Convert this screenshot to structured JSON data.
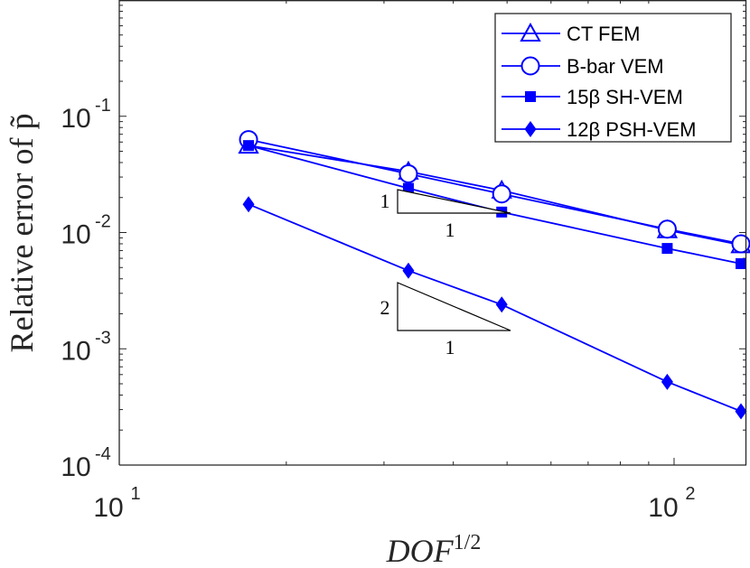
{
  "chart_data": {
    "type": "line",
    "xscale": "log",
    "yscale": "log",
    "xlim": [
      10,
      135
    ],
    "ylim": [
      0.0001,
      1
    ],
    "x_ticks": [
      {
        "value": 10,
        "base": "10",
        "exp": "1"
      },
      {
        "value": 100,
        "base": "10",
        "exp": "2"
      }
    ],
    "y_ticks": [
      {
        "value": 0.1,
        "base": "10",
        "exp": "-1"
      },
      {
        "value": 0.01,
        "base": "10",
        "exp": "-2"
      },
      {
        "value": 0.001,
        "base": "10",
        "exp": "-3"
      },
      {
        "value": 0.0001,
        "base": "10",
        "exp": "-4"
      }
    ],
    "xlabel": "DOF",
    "xlabel_sup": "1/2",
    "ylabel": "Relative error of p̃",
    "legend_position": "top-right",
    "color": "#0000ff",
    "series": [
      {
        "name": "CT FEM",
        "marker": "triangle-open",
        "x": [
          17.1,
          33.2,
          48.9,
          97.2,
          132.0
        ],
        "y": [
          0.056,
          0.0335,
          0.023,
          0.0105,
          0.0078
        ]
      },
      {
        "name": "B-bar VEM",
        "marker": "circle-open",
        "x": [
          17.1,
          33.2,
          48.9,
          97.2,
          132.0
        ],
        "y": [
          0.063,
          0.032,
          0.0215,
          0.0107,
          0.008
        ]
      },
      {
        "name": "15β SH-VEM",
        "marker": "square-filled",
        "x": [
          17.1,
          33.2,
          48.9,
          97.2,
          132.0
        ],
        "y": [
          0.056,
          0.024,
          0.015,
          0.0073,
          0.0054
        ]
      },
      {
        "name": "12β PSH-VEM",
        "marker": "diamond-filled",
        "x": [
          17.1,
          33.2,
          48.9,
          97.2,
          132.0
        ],
        "y": [
          0.0175,
          0.0047,
          0.0024,
          0.00052,
          0.00029
        ]
      }
    ],
    "annotations": [
      {
        "type": "slope-triangle",
        "rise_label": "1",
        "run_label": "1"
      },
      {
        "type": "slope-triangle",
        "rise_label": "2",
        "run_label": "1"
      }
    ]
  }
}
